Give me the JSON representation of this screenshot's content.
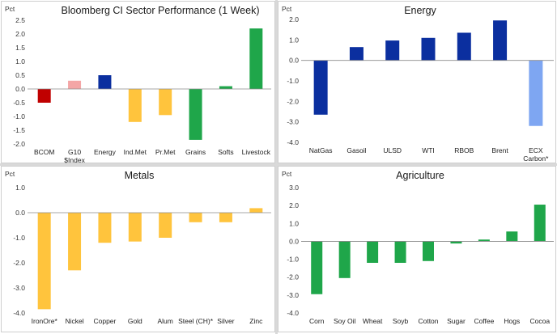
{
  "chart_data": [
    {
      "type": "bar",
      "title": "Bloomberg CI Sector Performance (1 Week)",
      "ylabel": "Pct",
      "ylim": [
        -2.0,
        2.5
      ],
      "yticks": [
        2.5,
        2.0,
        1.5,
        1.0,
        0.5,
        0.0,
        -0.5,
        -1.0,
        -1.5,
        -2.0
      ],
      "ytick_decimals": 1,
      "grid": false,
      "categories": [
        "BCOM",
        "G10\n$Index",
        "Energy",
        "Ind.Met",
        "Pr.Met",
        "Grains",
        "Softs",
        "Livestock"
      ],
      "values": [
        -0.5,
        0.3,
        0.5,
        -1.2,
        -0.95,
        -1.85,
        0.1,
        2.2
      ],
      "colors": [
        "#c00000",
        "#f4a6a6",
        "#0b2f9f",
        "#ffc43d",
        "#ffc43d",
        "#1fa64a",
        "#1fa64a",
        "#1fa64a"
      ]
    },
    {
      "type": "bar",
      "title": "Energy",
      "ylabel": "Pct",
      "ylim": [
        -4.0,
        2.0
      ],
      "yticks": [
        2.0,
        1.0,
        0.0,
        -1.0,
        -2.0,
        -3.0,
        -4.0
      ],
      "ytick_decimals": 1,
      "grid": false,
      "categories": [
        "NatGas",
        "Gasoil",
        "ULSD",
        "WTI",
        "RBOB",
        "Brent",
        "ECX\nCarbon*"
      ],
      "values": [
        -2.65,
        0.65,
        0.97,
        1.1,
        1.35,
        1.95,
        -3.2
      ],
      "colors": [
        "#0b2f9f",
        "#0b2f9f",
        "#0b2f9f",
        "#0b2f9f",
        "#0b2f9f",
        "#0b2f9f",
        "#7ea6f2"
      ]
    },
    {
      "type": "bar",
      "title": "Metals",
      "ylabel": "Pct",
      "ylim": [
        -4.0,
        1.0
      ],
      "yticks": [
        1.0,
        0.0,
        -1.0,
        -2.0,
        -3.0,
        -4.0
      ],
      "ytick_decimals": 1,
      "grid": false,
      "categories": [
        "IronOre*",
        "Nickel",
        "Copper",
        "Gold",
        "Alum",
        "Steel (CH)*",
        "Silver",
        "Zinc"
      ],
      "values": [
        -3.85,
        -2.3,
        -1.2,
        -1.15,
        -1.0,
        -0.38,
        -0.38,
        0.18
      ],
      "colors": [
        "#ffc43d",
        "#ffc43d",
        "#ffc43d",
        "#ffc43d",
        "#ffc43d",
        "#ffc43d",
        "#ffc43d",
        "#ffc43d"
      ]
    },
    {
      "type": "bar",
      "title": "Agriculture",
      "ylabel": "Pct",
      "ylim": [
        -4.0,
        3.0
      ],
      "yticks": [
        3.0,
        2.0,
        1.0,
        0.0,
        -1.0,
        -2.0,
        -3.0,
        -4.0
      ],
      "ytick_decimals": 1,
      "grid": false,
      "categories": [
        "Corn",
        "Soy Oil",
        "Wheat",
        "Soyb",
        "Cotton",
        "Sugar",
        "Coffee",
        "Hogs",
        "Cocoa"
      ],
      "values": [
        -2.95,
        -2.05,
        -1.2,
        -1.2,
        -1.1,
        -0.12,
        0.1,
        0.55,
        2.05
      ],
      "colors": [
        "#1fa64a",
        "#1fa64a",
        "#1fa64a",
        "#1fa64a",
        "#1fa64a",
        "#1fa64a",
        "#1fa64a",
        "#1fa64a",
        "#1fa64a"
      ]
    }
  ]
}
